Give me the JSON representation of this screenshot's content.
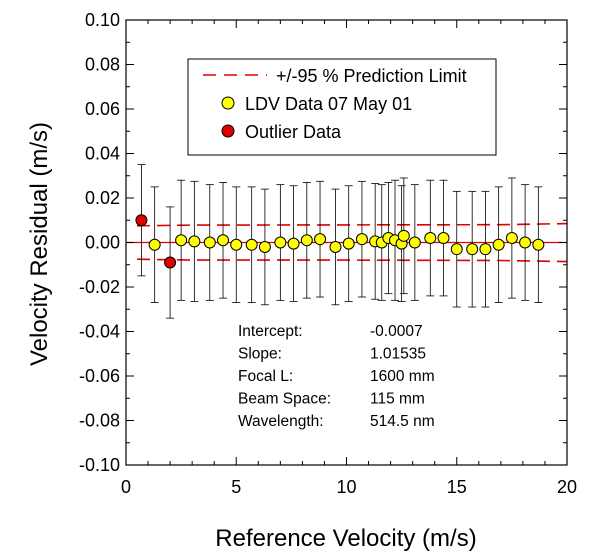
{
  "chart_data": {
    "type": "scatter",
    "title": "",
    "xlabel": "Reference Velocity (m/s)",
    "ylabel": "Velocity Residual (m/s)",
    "xlim": [
      0,
      20
    ],
    "ylim": [
      -0.1,
      0.1
    ],
    "xticks": [
      "0",
      "5",
      "10",
      "15",
      "20"
    ],
    "yticks": [
      "0.10",
      "0.08",
      "0.06",
      "0.04",
      "0.02",
      "0.00",
      "-0.02",
      "-0.04",
      "-0.06",
      "-0.08",
      "-0.10"
    ],
    "grid": false,
    "legend_position": "top",
    "legend": {
      "prediction_limit": "+/-95 % Prediction Limit",
      "ldv_data": "LDV Data 07 May 01",
      "outlier_data": "Outlier Data"
    },
    "colors": {
      "ldv": "#ffff00",
      "outlier": "#e00000",
      "limit": "#e00000",
      "zero_line": "#e00000"
    },
    "prediction_limit": {
      "upper": [
        [
          0.5,
          0.0075
        ],
        [
          3.0,
          0.0078
        ],
        [
          10.0,
          0.0079
        ],
        [
          17.0,
          0.008
        ],
        [
          20.0,
          0.0085
        ]
      ],
      "lower": [
        [
          0.5,
          -0.0075
        ],
        [
          3.0,
          -0.0079
        ],
        [
          10.0,
          -0.0079
        ],
        [
          17.0,
          -0.0081
        ],
        [
          20.0,
          -0.0086
        ]
      ]
    },
    "series": [
      {
        "name": "LDV Data 07 May 01",
        "x": [
          1.3,
          2.5,
          3.1,
          3.8,
          4.4,
          5.0,
          5.7,
          6.3,
          7.0,
          7.6,
          8.2,
          8.8,
          9.5,
          10.1,
          10.7,
          11.3,
          11.6,
          11.9,
          12.2,
          12.5,
          12.6,
          13.1,
          13.8,
          14.4,
          15.0,
          15.7,
          16.3,
          16.9,
          17.5,
          18.1,
          18.7
        ],
        "y": [
          -0.001,
          0.001,
          0.0005,
          0.0,
          0.001,
          -0.001,
          -0.001,
          -0.002,
          0.0,
          -0.0005,
          0.001,
          0.0015,
          -0.002,
          -0.0005,
          0.0015,
          0.0005,
          0.0,
          0.002,
          0.001,
          -0.0005,
          0.003,
          0.0,
          0.002,
          0.002,
          -0.003,
          -0.003,
          -0.003,
          -0.001,
          0.002,
          0.0,
          -0.001
        ],
        "error": [
          0.026,
          0.027,
          0.027,
          0.026,
          0.026,
          0.026,
          0.026,
          0.026,
          0.026,
          0.026,
          0.026,
          0.026,
          0.026,
          0.026,
          0.026,
          0.026,
          0.026,
          0.025,
          0.027,
          0.026,
          0.026,
          0.026,
          0.026,
          0.026,
          0.026,
          0.026,
          0.026,
          0.026,
          0.027,
          0.026,
          0.026
        ]
      },
      {
        "name": "Outlier Data",
        "x": [
          0.7,
          2.0
        ],
        "y": [
          0.01,
          -0.009
        ],
        "error": [
          0.025,
          0.025
        ]
      }
    ],
    "annotations": [
      {
        "label": "Intercept:",
        "value": "-0.0007"
      },
      {
        "label": "Slope:",
        "value": "1.01535"
      },
      {
        "label": "Focal L:",
        "value": "1600 mm"
      },
      {
        "label": "Beam Space:",
        "value": "115 mm"
      },
      {
        "label": "Wavelength:",
        "value": "514.5 nm"
      }
    ]
  }
}
